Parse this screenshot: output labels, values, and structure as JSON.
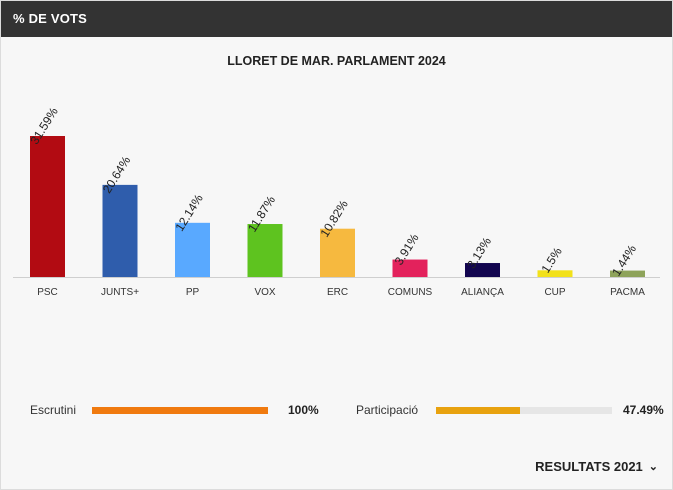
{
  "header": {
    "title": "% DE VOTS"
  },
  "colors": {
    "header_bg": "#333333",
    "escrutini_fill": "#f07a0f",
    "participacio_fill": "#e8a20f",
    "track": "#e6e6e6"
  },
  "chart_data": {
    "type": "bar",
    "title": "LLORET DE MAR. PARLAMENT 2024",
    "categories": [
      "PSC",
      "JUNTS+",
      "PP",
      "VOX",
      "ERC",
      "COMUNS",
      "ALIANÇA",
      "CUP",
      "PACMA"
    ],
    "values": [
      31.59,
      20.64,
      12.14,
      11.87,
      10.82,
      3.91,
      3.13,
      1.5,
      1.44
    ],
    "value_labels": [
      "31.59%",
      "20.64%",
      "12.14%",
      "11.87%",
      "10.82%",
      "3.91%",
      "3.13%",
      "1.5%",
      "1.44%"
    ],
    "colors": [
      "#b20b12",
      "#2f5dac",
      "#59a9ff",
      "#5ec31f",
      "#f6b93f",
      "#e3225c",
      "#12054f",
      "#f2e11a",
      "#8ea35a"
    ],
    "xlabel": "",
    "ylabel": "",
    "grid": false,
    "legend": "none"
  },
  "stats": {
    "escrutini": {
      "label": "Escrutini",
      "value": "100%",
      "fraction": 1.0
    },
    "participacio": {
      "label": "Participació",
      "value": "47.49%",
      "fraction": 0.4749
    }
  },
  "footer": {
    "results_label": "RESULTATS 2021",
    "chevron_icon": "chevron-down-icon"
  }
}
